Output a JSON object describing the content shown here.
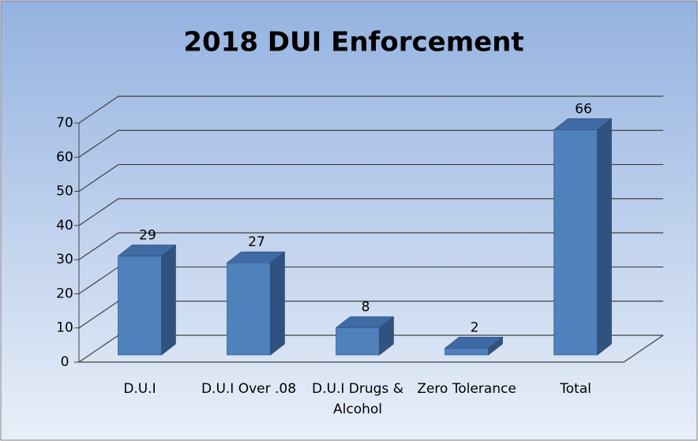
{
  "chart_data": {
    "type": "bar3d",
    "title": "2018 DUI Enforcement",
    "categories": [
      "D.U.I",
      "D.U.I Over .08",
      "D.U.I Drugs & Alcohol",
      "Zero Tolerance",
      "Total"
    ],
    "values": [
      29,
      27,
      8,
      2,
      66
    ],
    "color": "#4f81bd",
    "ylim": [
      0,
      70
    ],
    "yticks": [
      0,
      10,
      20,
      30,
      40,
      50,
      60,
      70
    ],
    "grid": true
  }
}
